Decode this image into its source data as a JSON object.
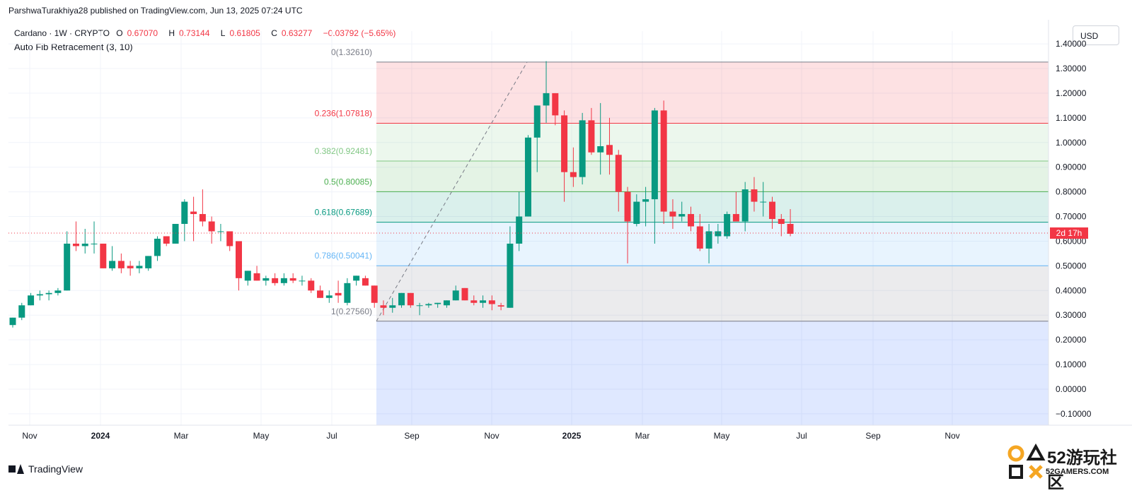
{
  "header": {
    "published_line": "ParshwaTurakhiya28 published on TradingView.com, Jun 13, 2025 07:24 UTC"
  },
  "legend": {
    "symbol": "Cardano · 1W · CRYPTO",
    "o_label": "O",
    "o_value": "0.67070",
    "h_label": "H",
    "h_value": "0.73144",
    "l_label": "L",
    "l_value": "0.61805",
    "c_label": "C",
    "c_value": "0.63277",
    "change": "−0.03792 (−5.65%)",
    "indicator": "Auto Fib Retracement (3, 10)"
  },
  "currency_button": "USD",
  "branding": {
    "logo_text": "TradingView"
  },
  "watermark": {
    "text": "52游玩社区",
    "sub": "52GAMERS.COM"
  },
  "colors": {
    "up": "#089981",
    "down": "#f23645",
    "price_line": "#f23645"
  },
  "chart_data": {
    "type": "candlestick",
    "ylim": [
      -0.15,
      1.4
    ],
    "y_ticks": [
      "1.40000",
      "1.30000",
      "1.20000",
      "1.10000",
      "1.00000",
      "0.90000",
      "0.80000",
      "0.70000",
      "0.60000",
      "0.50000",
      "0.40000",
      "0.30000",
      "0.20000",
      "0.10000",
      "0.00000",
      "−0.10000"
    ],
    "x_ticks": [
      "Nov",
      "2024",
      "Mar",
      "May",
      "Jul",
      "Sep",
      "Nov",
      "2025",
      "Mar",
      "May",
      "Jul",
      "Sep",
      "Nov"
    ],
    "last_price": 0.63277,
    "countdown_label": "2d 17h",
    "fib_levels": [
      {
        "ratio": "0",
        "label": "0(1.32610)",
        "price": 1.3261,
        "line": "#787b86",
        "fill": "rgba(242,54,69,0.15)"
      },
      {
        "ratio": "0.236",
        "label": "0.236(1.07818)",
        "price": 1.07818,
        "line": "#f23645",
        "fill": "rgba(129,199,132,0.15)"
      },
      {
        "ratio": "0.382",
        "label": "0.382(0.92481)",
        "price": 0.92481,
        "line": "#81c784",
        "fill": "rgba(76,175,80,0.15)"
      },
      {
        "ratio": "0.5",
        "label": "0.5(0.80085)",
        "price": 0.80085,
        "line": "#4caf50",
        "fill": "rgba(8,153,129,0.15)"
      },
      {
        "ratio": "0.618",
        "label": "0.618(0.67689)",
        "price": 0.67689,
        "line": "#089981",
        "fill": "rgba(100,181,246,0.15)"
      },
      {
        "ratio": "0.786",
        "label": "0.786(0.50041)",
        "price": 0.50041,
        "line": "#64b5f6",
        "fill": "rgba(120,123,134,0.15)"
      },
      {
        "ratio": "1",
        "label": "1(0.27560)",
        "price": 0.2756,
        "line": "#787b86",
        "fill": "rgba(41,98,255,0.15)"
      }
    ],
    "candles": [
      {
        "o": 0.26,
        "h": 0.29,
        "l": 0.25,
        "c": 0.29
      },
      {
        "o": 0.29,
        "h": 0.35,
        "l": 0.28,
        "c": 0.34
      },
      {
        "o": 0.34,
        "h": 0.39,
        "l": 0.34,
        "c": 0.38
      },
      {
        "o": 0.38,
        "h": 0.4,
        "l": 0.36,
        "c": 0.385
      },
      {
        "o": 0.385,
        "h": 0.4,
        "l": 0.36,
        "c": 0.39
      },
      {
        "o": 0.39,
        "h": 0.41,
        "l": 0.38,
        "c": 0.4
      },
      {
        "o": 0.4,
        "h": 0.64,
        "l": 0.4,
        "c": 0.59
      },
      {
        "o": 0.59,
        "h": 0.68,
        "l": 0.56,
        "c": 0.58
      },
      {
        "o": 0.58,
        "h": 0.65,
        "l": 0.55,
        "c": 0.59
      },
      {
        "o": 0.59,
        "h": 0.68,
        "l": 0.55,
        "c": 0.59
      },
      {
        "o": 0.59,
        "h": 0.59,
        "l": 0.49,
        "c": 0.49
      },
      {
        "o": 0.49,
        "h": 0.58,
        "l": 0.48,
        "c": 0.52
      },
      {
        "o": 0.52,
        "h": 0.55,
        "l": 0.47,
        "c": 0.49
      },
      {
        "o": 0.5,
        "h": 0.52,
        "l": 0.46,
        "c": 0.49
      },
      {
        "o": 0.49,
        "h": 0.52,
        "l": 0.47,
        "c": 0.5
      },
      {
        "o": 0.49,
        "h": 0.54,
        "l": 0.48,
        "c": 0.54
      },
      {
        "o": 0.54,
        "h": 0.62,
        "l": 0.52,
        "c": 0.61
      },
      {
        "o": 0.62,
        "h": 0.62,
        "l": 0.58,
        "c": 0.59
      },
      {
        "o": 0.59,
        "h": 0.67,
        "l": 0.59,
        "c": 0.67
      },
      {
        "o": 0.67,
        "h": 0.77,
        "l": 0.6,
        "c": 0.76
      },
      {
        "o": 0.72,
        "h": 0.78,
        "l": 0.6,
        "c": 0.71
      },
      {
        "o": 0.71,
        "h": 0.81,
        "l": 0.66,
        "c": 0.68
      },
      {
        "o": 0.68,
        "h": 0.7,
        "l": 0.59,
        "c": 0.64
      },
      {
        "o": 0.64,
        "h": 0.67,
        "l": 0.6,
        "c": 0.64
      },
      {
        "o": 0.64,
        "h": 0.63,
        "l": 0.56,
        "c": 0.58
      },
      {
        "o": 0.6,
        "h": 0.6,
        "l": 0.4,
        "c": 0.45
      },
      {
        "o": 0.44,
        "h": 0.48,
        "l": 0.42,
        "c": 0.48
      },
      {
        "o": 0.47,
        "h": 0.5,
        "l": 0.44,
        "c": 0.44
      },
      {
        "o": 0.44,
        "h": 0.46,
        "l": 0.42,
        "c": 0.45
      },
      {
        "o": 0.45,
        "h": 0.47,
        "l": 0.42,
        "c": 0.43
      },
      {
        "o": 0.43,
        "h": 0.47,
        "l": 0.42,
        "c": 0.45
      },
      {
        "o": 0.45,
        "h": 0.47,
        "l": 0.43,
        "c": 0.44
      },
      {
        "o": 0.44,
        "h": 0.46,
        "l": 0.42,
        "c": 0.44
      },
      {
        "o": 0.44,
        "h": 0.45,
        "l": 0.39,
        "c": 0.4
      },
      {
        "o": 0.4,
        "h": 0.42,
        "l": 0.37,
        "c": 0.37
      },
      {
        "o": 0.37,
        "h": 0.4,
        "l": 0.35,
        "c": 0.38
      },
      {
        "o": 0.39,
        "h": 0.44,
        "l": 0.35,
        "c": 0.38
      },
      {
        "o": 0.35,
        "h": 0.45,
        "l": 0.34,
        "c": 0.43
      },
      {
        "o": 0.44,
        "h": 0.46,
        "l": 0.42,
        "c": 0.46
      },
      {
        "o": 0.45,
        "h": 0.46,
        "l": 0.42,
        "c": 0.42
      },
      {
        "o": 0.42,
        "h": 0.42,
        "l": 0.33,
        "c": 0.35
      },
      {
        "o": 0.34,
        "h": 0.36,
        "l": 0.3,
        "c": 0.33
      },
      {
        "o": 0.33,
        "h": 0.37,
        "l": 0.31,
        "c": 0.34
      },
      {
        "o": 0.34,
        "h": 0.39,
        "l": 0.33,
        "c": 0.39
      },
      {
        "o": 0.39,
        "h": 0.39,
        "l": 0.33,
        "c": 0.34
      },
      {
        "o": 0.34,
        "h": 0.35,
        "l": 0.3,
        "c": 0.34
      },
      {
        "o": 0.34,
        "h": 0.35,
        "l": 0.33,
        "c": 0.345
      },
      {
        "o": 0.345,
        "h": 0.35,
        "l": 0.33,
        "c": 0.35
      },
      {
        "o": 0.34,
        "h": 0.36,
        "l": 0.33,
        "c": 0.36
      },
      {
        "o": 0.36,
        "h": 0.42,
        "l": 0.36,
        "c": 0.4
      },
      {
        "o": 0.41,
        "h": 0.41,
        "l": 0.36,
        "c": 0.36
      },
      {
        "o": 0.36,
        "h": 0.38,
        "l": 0.34,
        "c": 0.35
      },
      {
        "o": 0.35,
        "h": 0.38,
        "l": 0.33,
        "c": 0.36
      },
      {
        "o": 0.36,
        "h": 0.38,
        "l": 0.32,
        "c": 0.345
      },
      {
        "o": 0.34,
        "h": 0.35,
        "l": 0.32,
        "c": 0.335
      },
      {
        "o": 0.33,
        "h": 0.66,
        "l": 0.33,
        "c": 0.59
      },
      {
        "o": 0.59,
        "h": 0.8,
        "l": 0.56,
        "c": 0.7
      },
      {
        "o": 0.7,
        "h": 1.03,
        "l": 0.7,
        "c": 1.02
      },
      {
        "o": 1.02,
        "h": 1.15,
        "l": 0.88,
        "c": 1.15
      },
      {
        "o": 1.15,
        "h": 1.33,
        "l": 1.08,
        "c": 1.2
      },
      {
        "o": 1.2,
        "h": 1.2,
        "l": 1.07,
        "c": 1.11
      },
      {
        "o": 1.11,
        "h": 1.13,
        "l": 0.76,
        "c": 0.88
      },
      {
        "o": 0.88,
        "h": 0.98,
        "l": 0.82,
        "c": 0.86
      },
      {
        "o": 0.86,
        "h": 1.12,
        "l": 0.83,
        "c": 1.09
      },
      {
        "o": 1.09,
        "h": 1.14,
        "l": 0.95,
        "c": 0.96
      },
      {
        "o": 0.96,
        "h": 1.16,
        "l": 0.87,
        "c": 0.985
      },
      {
        "o": 0.99,
        "h": 1.1,
        "l": 0.87,
        "c": 0.95
      },
      {
        "o": 0.95,
        "h": 0.97,
        "l": 0.72,
        "c": 0.8
      },
      {
        "o": 0.8,
        "h": 0.82,
        "l": 0.51,
        "c": 0.68
      },
      {
        "o": 0.67,
        "h": 0.79,
        "l": 0.66,
        "c": 0.76
      },
      {
        "o": 0.76,
        "h": 0.82,
        "l": 0.66,
        "c": 0.77
      },
      {
        "o": 0.77,
        "h": 1.14,
        "l": 0.59,
        "c": 1.13
      },
      {
        "o": 1.13,
        "h": 1.17,
        "l": 0.67,
        "c": 0.72
      },
      {
        "o": 0.72,
        "h": 0.77,
        "l": 0.65,
        "c": 0.7
      },
      {
        "o": 0.7,
        "h": 0.76,
        "l": 0.68,
        "c": 0.71
      },
      {
        "o": 0.71,
        "h": 0.74,
        "l": 0.64,
        "c": 0.66
      },
      {
        "o": 0.66,
        "h": 0.71,
        "l": 0.56,
        "c": 0.57
      },
      {
        "o": 0.57,
        "h": 0.67,
        "l": 0.51,
        "c": 0.64
      },
      {
        "o": 0.62,
        "h": 0.67,
        "l": 0.59,
        "c": 0.64
      },
      {
        "o": 0.62,
        "h": 0.72,
        "l": 0.61,
        "c": 0.71
      },
      {
        "o": 0.71,
        "h": 0.8,
        "l": 0.68,
        "c": 0.68
      },
      {
        "o": 0.68,
        "h": 0.84,
        "l": 0.64,
        "c": 0.81
      },
      {
        "o": 0.81,
        "h": 0.86,
        "l": 0.72,
        "c": 0.76
      },
      {
        "o": 0.76,
        "h": 0.84,
        "l": 0.7,
        "c": 0.76
      },
      {
        "o": 0.76,
        "h": 0.78,
        "l": 0.65,
        "c": 0.69
      },
      {
        "o": 0.69,
        "h": 0.71,
        "l": 0.62,
        "c": 0.67
      },
      {
        "o": 0.67,
        "h": 0.73,
        "l": 0.62,
        "c": 0.63
      }
    ]
  }
}
